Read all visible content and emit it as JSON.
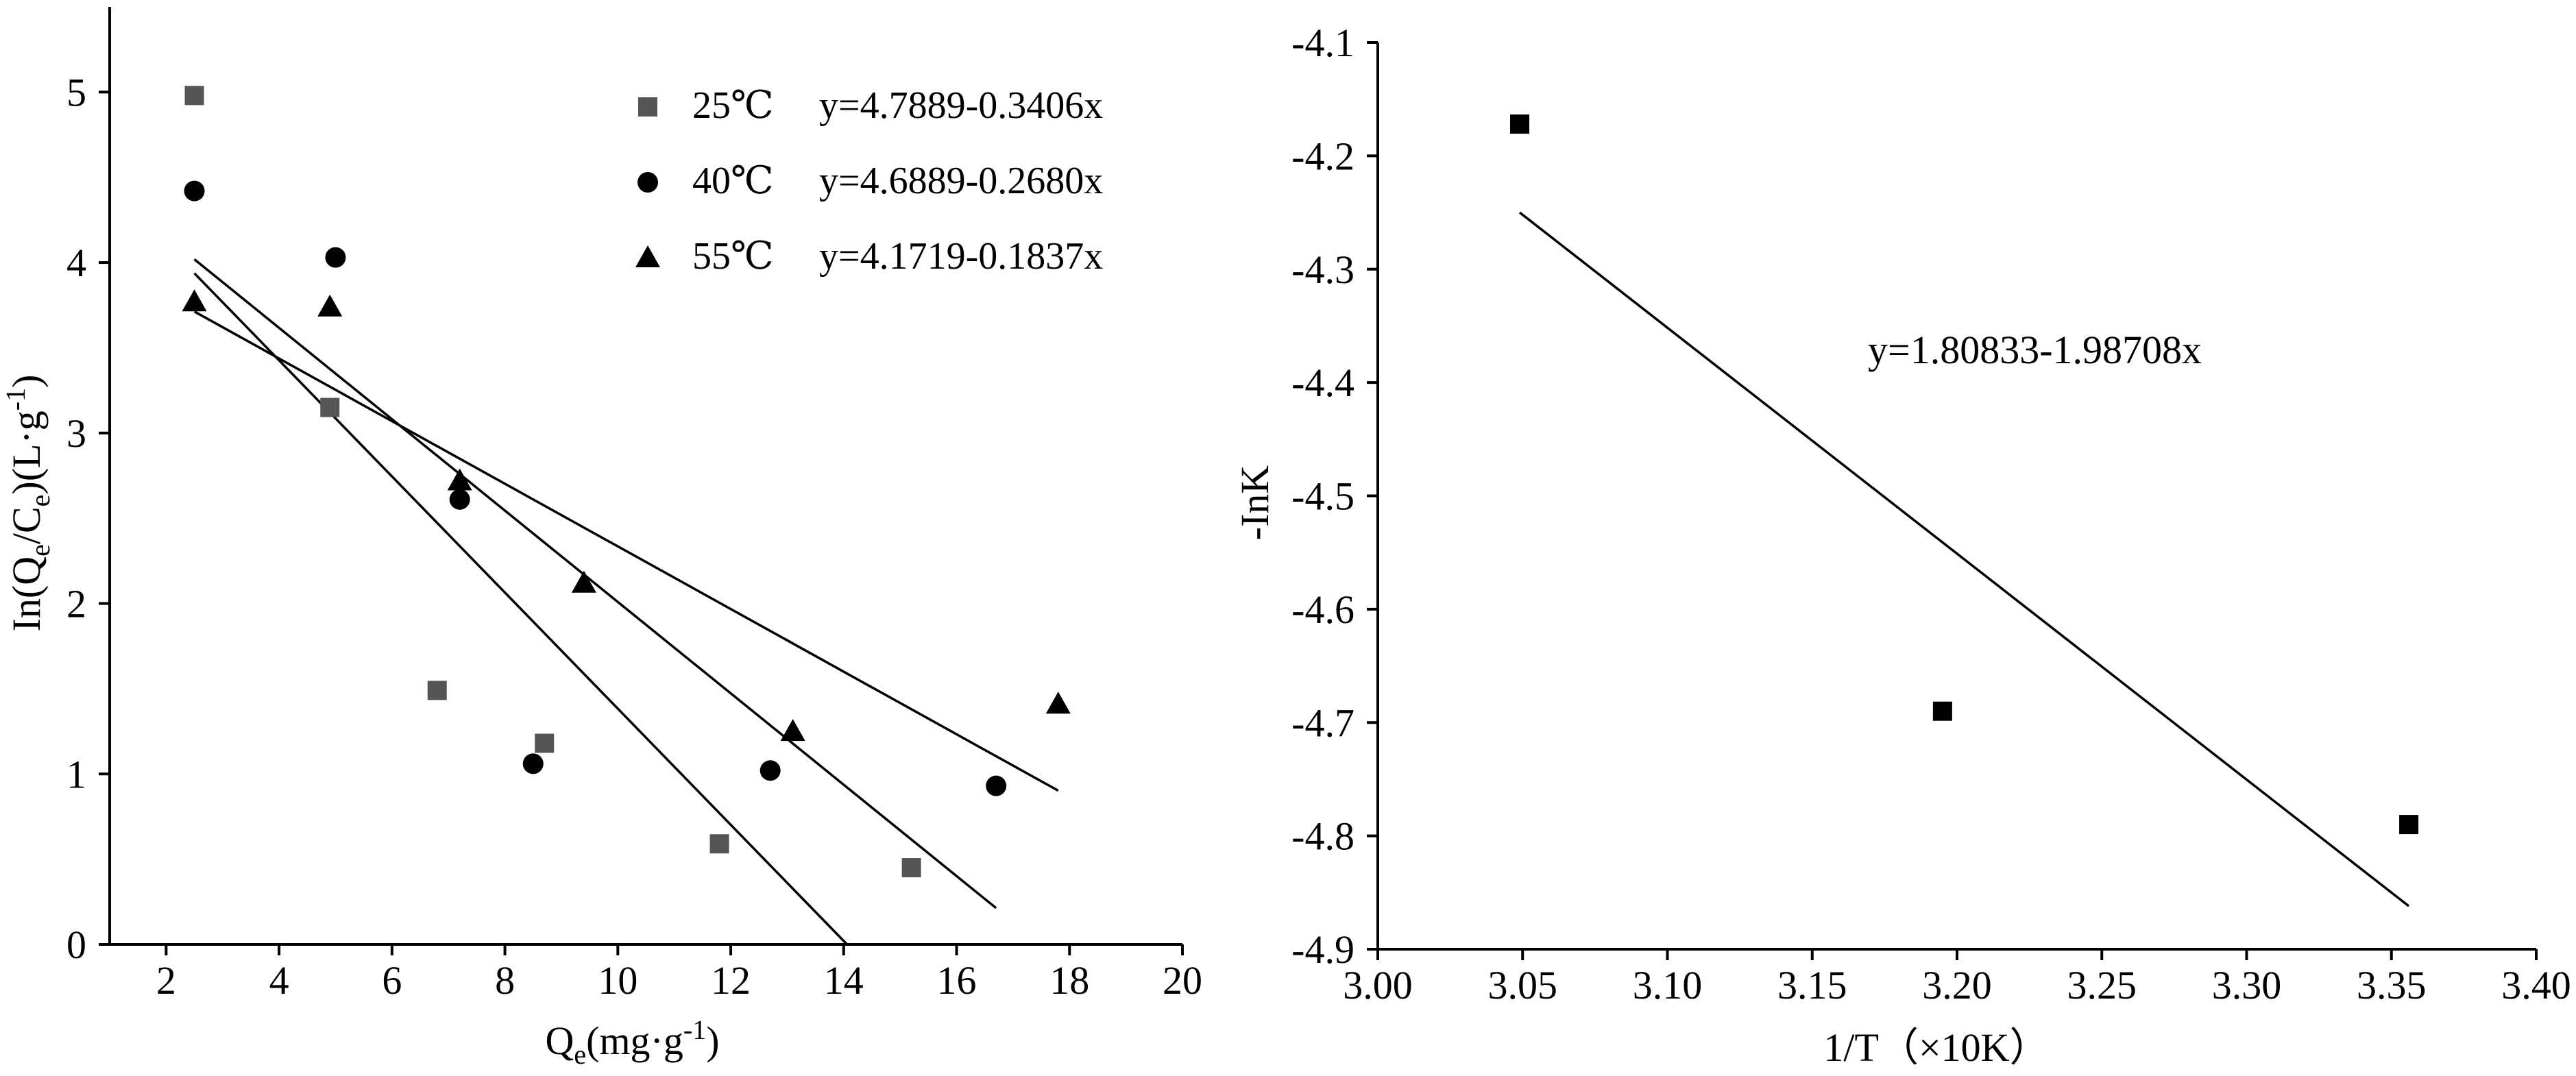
{
  "chart_data": [
    {
      "type": "scatter",
      "title": "",
      "xlabel": "Qe(mg·g-1)",
      "ylabel": "In(Qe/Ce)(L·g-1)",
      "xlim": [
        1,
        20
      ],
      "ylim": [
        0,
        5.5
      ],
      "xticks": [
        "2",
        "4",
        "6",
        "8",
        "10",
        "12",
        "14",
        "16",
        "18",
        "20"
      ],
      "yticks": [
        "0",
        "1",
        "2",
        "3",
        "4",
        "5"
      ],
      "legend_position": "top-right",
      "series": [
        {
          "name": "25℃",
          "equation": "y=4.7889-0.3406x",
          "marker": "square",
          "color": "#555555",
          "x": [
            2.5,
            4.9,
            6.8,
            8.7,
            11.8,
            15.2
          ],
          "y": [
            4.98,
            3.15,
            1.49,
            1.18,
            0.59,
            0.45
          ],
          "fit": {
            "intercept": 4.7889,
            "slope": -0.3406,
            "x_range": [
              2.5,
              14.06
            ]
          }
        },
        {
          "name": "40℃",
          "equation": "y=4.6889-0.2680x",
          "marker": "circle",
          "color": "#000000",
          "x": [
            2.5,
            5.0,
            7.2,
            8.5,
            12.7,
            16.7
          ],
          "y": [
            4.42,
            4.03,
            2.61,
            1.06,
            1.02,
            0.93
          ],
          "fit": {
            "intercept": 4.6889,
            "slope": -0.268,
            "x_range": [
              2.5,
              16.7
            ]
          }
        },
        {
          "name": "55℃",
          "equation": "y=4.1719-0.1837x",
          "marker": "triangle",
          "color": "#000000",
          "x": [
            2.5,
            4.9,
            7.2,
            9.4,
            13.1,
            17.8
          ],
          "y": [
            3.77,
            3.74,
            2.72,
            2.12,
            1.25,
            1.41
          ],
          "fit": {
            "intercept": 4.1719,
            "slope": -0.1837,
            "x_range": [
              2.5,
              17.8
            ]
          }
        }
      ]
    },
    {
      "type": "scatter",
      "title": "",
      "xlabel": "1/T（×10K）",
      "ylabel": "-InK",
      "xlim": [
        3.0,
        3.4
      ],
      "ylim": [
        -4.9,
        -4.1
      ],
      "xticks": [
        "3.00",
        "3.05",
        "3.10",
        "3.15",
        "3.20",
        "3.25",
        "3.30",
        "3.35",
        "3.40"
      ],
      "yticks": [
        "-4.1",
        "-4.2",
        "-4.3",
        "-4.4",
        "-4.5",
        "-4.6",
        "-4.7",
        "-4.8",
        "-4.9"
      ],
      "series": [
        {
          "name": "",
          "equation": "y=1.80833-1.98708x",
          "marker": "square",
          "color": "#000000",
          "x": [
            3.049,
            3.195,
            3.356
          ],
          "y": [
            -4.172,
            -4.69,
            -4.79
          ],
          "fit": {
            "intercept": 1.80833,
            "slope": -1.98708,
            "x_range": [
              3.049,
              3.356
            ]
          }
        }
      ]
    }
  ]
}
